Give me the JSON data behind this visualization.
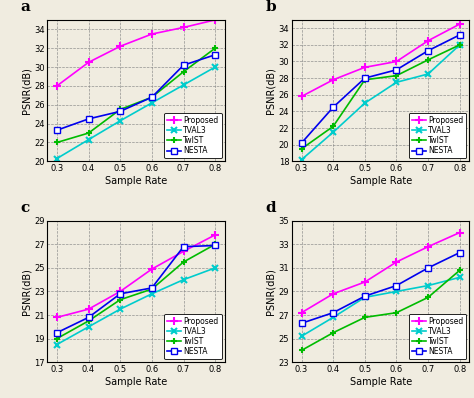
{
  "x": [
    0.3,
    0.4,
    0.5,
    0.6,
    0.7,
    0.8
  ],
  "subplots": [
    {
      "label": "a",
      "ylim": [
        20,
        35
      ],
      "yticks": [
        20,
        22,
        24,
        26,
        28,
        30,
        32,
        34
      ],
      "proposed": [
        28.0,
        30.5,
        32.2,
        33.5,
        34.2,
        35.0
      ],
      "tval3": [
        20.3,
        22.3,
        24.3,
        26.2,
        28.1,
        30.0
      ],
      "twist": [
        22.0,
        23.0,
        25.5,
        26.8,
        29.5,
        32.0
      ],
      "nesta": [
        23.3,
        24.5,
        25.3,
        26.8,
        30.2,
        31.3
      ]
    },
    {
      "label": "b",
      "ylim": [
        18,
        35
      ],
      "yticks": [
        18,
        20,
        22,
        24,
        26,
        28,
        30,
        32,
        34
      ],
      "proposed": [
        25.8,
        27.8,
        29.3,
        30.0,
        32.5,
        34.5
      ],
      "tval3": [
        18.2,
        21.5,
        25.0,
        27.5,
        28.5,
        32.0
      ],
      "twist": [
        19.5,
        22.2,
        27.8,
        28.3,
        30.2,
        32.0
      ],
      "nesta": [
        20.2,
        24.5,
        28.0,
        29.0,
        31.3,
        33.2
      ]
    },
    {
      "label": "c",
      "ylim": [
        17,
        29
      ],
      "yticks": [
        17,
        19,
        21,
        23,
        25,
        27,
        29
      ],
      "proposed": [
        20.8,
        21.5,
        23.0,
        24.9,
        26.4,
        27.8
      ],
      "tval3": [
        18.5,
        20.0,
        21.5,
        22.8,
        24.0,
        25.0
      ],
      "twist": [
        19.0,
        20.5,
        22.3,
        23.2,
        25.5,
        27.0
      ],
      "nesta": [
        19.5,
        20.8,
        22.8,
        23.3,
        26.8,
        26.9
      ]
    },
    {
      "label": "d",
      "ylim": [
        23,
        35
      ],
      "yticks": [
        23,
        25,
        27,
        29,
        31,
        33,
        35
      ],
      "proposed": [
        27.2,
        28.8,
        29.8,
        31.5,
        32.8,
        34.0
      ],
      "tval3": [
        25.2,
        26.8,
        28.5,
        29.0,
        29.5,
        30.2
      ],
      "twist": [
        24.0,
        25.5,
        26.8,
        27.2,
        28.5,
        30.8
      ],
      "nesta": [
        26.3,
        27.2,
        28.6,
        29.5,
        31.0,
        32.3
      ]
    }
  ],
  "bg_color": "#f0ece0",
  "colors": {
    "proposed": "#FF00FF",
    "tval3": "#00CCCC",
    "twist": "#00BB00",
    "nesta": "#0000EE"
  },
  "legend_labels": [
    "Proposed",
    "TVAL3",
    "TwIST",
    "NESTA"
  ],
  "xlabel": "Sample Rate",
  "ylabel": "PSNR(dB)"
}
